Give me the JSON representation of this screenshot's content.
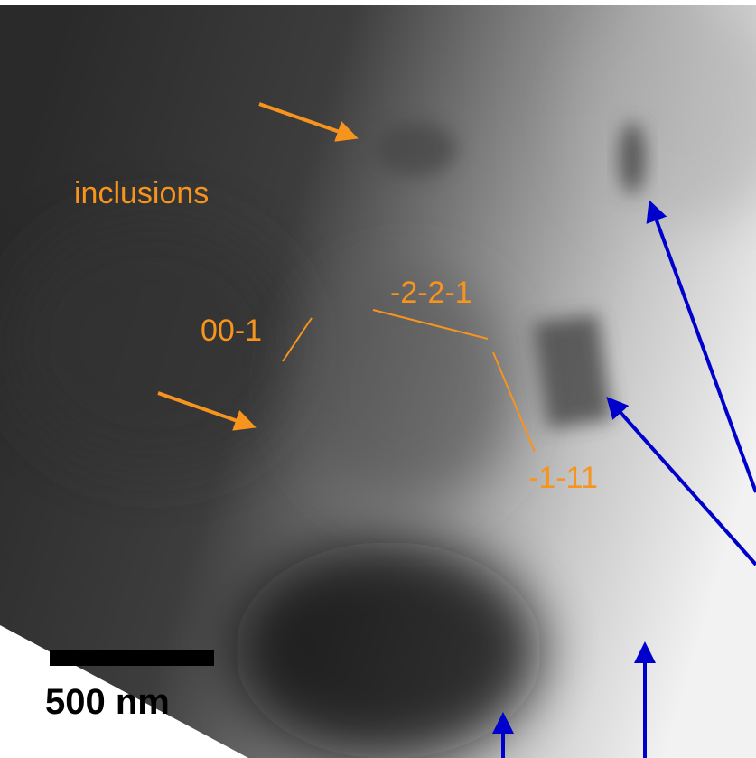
{
  "labels": {
    "inclusions": "inclusions",
    "plane_a": "00-1",
    "plane_b": "-2-2-1",
    "plane_c": "-1-11"
  },
  "scale_bar": {
    "label": "500 nm"
  }
}
